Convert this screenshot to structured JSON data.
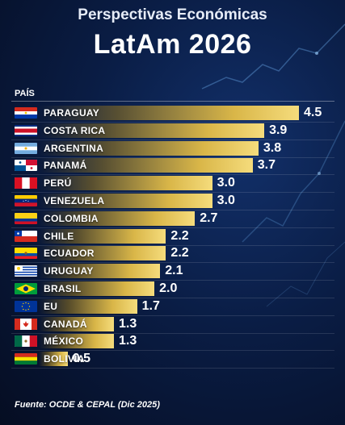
{
  "header": {
    "subtitle": "Perspectivas Económicas",
    "title": "LatAm 2026"
  },
  "column_label": "PAÍS",
  "footer": "Fuente: OCDE & CEPAL (Dic 2025)",
  "colors": {
    "bar_gold": "#f5dc7c",
    "background": "#0a1d45"
  },
  "chart_data": {
    "type": "bar",
    "orientation": "horizontal",
    "title": "LatAm 2026",
    "subtitle": "Perspectivas Económicas",
    "xlabel": "",
    "ylabel": "PAÍS",
    "xlim": [
      0,
      4.5
    ],
    "grid": false,
    "categories": [
      "PARAGUAY",
      "COSTA RICA",
      "ARGENTINA",
      "PANAMÁ",
      "PERÚ",
      "VENEZUELA",
      "COLOMBIA",
      "CHILE",
      "ECUADOR",
      "URUGUAY",
      "BRASIL",
      "EU",
      "CANADÁ",
      "MÉXICO",
      "BOLIVIA"
    ],
    "values": [
      4.5,
      3.9,
      3.8,
      3.7,
      3.0,
      3.0,
      2.7,
      2.2,
      2.2,
      2.1,
      2.0,
      1.7,
      1.3,
      1.3,
      0.5
    ],
    "value_labels": [
      "4.5",
      "3.9",
      "3.8",
      "3.7",
      "3.0",
      "3.0",
      "2.7",
      "2.2",
      "2.2",
      "2.1",
      "2.0",
      "1.7",
      "1.3",
      "1.3",
      "0.5"
    ],
    "flags": [
      "paraguay-flag",
      "costa-rica-flag",
      "argentina-flag",
      "panama-flag",
      "peru-flag",
      "venezuela-flag",
      "colombia-flag",
      "chile-flag",
      "ecuador-flag",
      "uruguay-flag",
      "brazil-flag",
      "eu-flag",
      "canada-flag",
      "mexico-flag",
      "bolivia-flag"
    ]
  }
}
